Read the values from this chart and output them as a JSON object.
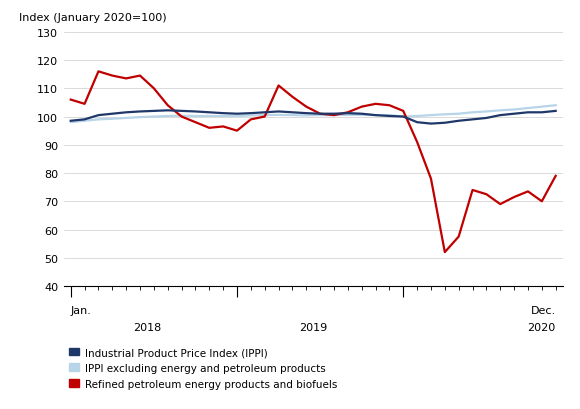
{
  "title": "Index (January 2020=100)",
  "ylim": [
    40,
    130
  ],
  "yticks": [
    40,
    50,
    60,
    70,
    80,
    90,
    100,
    110,
    120,
    130
  ],
  "ippi": [
    98.5,
    99.0,
    100.5,
    101.0,
    101.5,
    101.8,
    102.0,
    102.2,
    102.0,
    101.8,
    101.5,
    101.2,
    101.0,
    101.2,
    101.5,
    101.8,
    101.5,
    101.2,
    101.0,
    101.0,
    101.2,
    101.0,
    100.5,
    100.2,
    100.0,
    98.0,
    97.5,
    97.8,
    98.5,
    99.0,
    99.5,
    100.5,
    101.0,
    101.5,
    101.5,
    102.0
  ],
  "ippi_excl": [
    98.0,
    98.5,
    99.0,
    99.2,
    99.5,
    99.8,
    100.0,
    100.2,
    100.3,
    100.2,
    100.2,
    100.2,
    100.2,
    100.4,
    100.5,
    100.6,
    100.5,
    100.4,
    100.5,
    100.5,
    100.6,
    100.6,
    100.5,
    100.5,
    100.0,
    100.2,
    100.5,
    100.8,
    101.0,
    101.5,
    101.8,
    102.2,
    102.5,
    103.0,
    103.5,
    104.0
  ],
  "refined": [
    106.0,
    104.5,
    116.0,
    114.5,
    113.5,
    114.5,
    110.0,
    104.0,
    100.0,
    98.0,
    96.0,
    96.5,
    95.0,
    99.0,
    100.0,
    111.0,
    107.0,
    103.5,
    101.0,
    100.5,
    101.5,
    103.5,
    104.5,
    104.0,
    102.0,
    91.0,
    78.0,
    52.0,
    57.5,
    74.0,
    72.5,
    69.0,
    71.5,
    73.5,
    70.0,
    79.0
  ],
  "ippi_color": "#1f3869",
  "ippi_excl_color": "#b8d4e8",
  "refined_color": "#c00000",
  "line_width": 1.6,
  "legend_labels": [
    "Industrial Product Price Index (IPPI)",
    "IPPI excluding energy and petroleum products",
    "Refined petroleum energy products and biofuels"
  ]
}
